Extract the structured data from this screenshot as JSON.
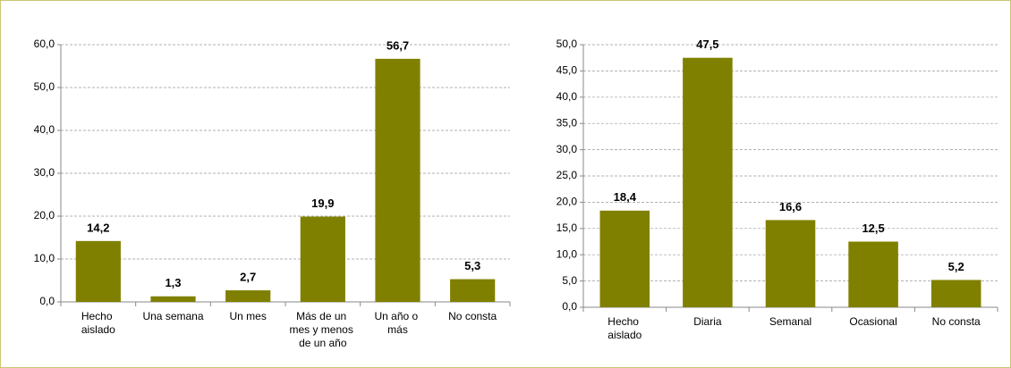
{
  "chart_data": [
    {
      "type": "bar",
      "categories": [
        "Hecho aislado",
        "Una semana",
        "Un mes",
        "Más de un mes y menos de un año",
        "Un año o más",
        "No consta"
      ],
      "values": [
        14.2,
        1.3,
        2.7,
        19.9,
        56.7,
        5.3
      ],
      "value_labels": [
        "14,2",
        "1,3",
        "2,7",
        "19,9",
        "56,7",
        "5,3"
      ],
      "color": "#808000",
      "ylim": [
        0,
        60
      ],
      "yticks": [
        {
          "value": 0,
          "label": "0,0"
        },
        {
          "value": 10,
          "label": "10,0"
        },
        {
          "value": 20,
          "label": "20,0"
        },
        {
          "value": 30,
          "label": "30,0"
        },
        {
          "value": 40,
          "label": "40,0"
        },
        {
          "value": 50,
          "label": "50,0"
        },
        {
          "value": 60,
          "label": "60,0"
        }
      ],
      "grid": true
    },
    {
      "type": "bar",
      "categories": [
        "Hecho aislado",
        "Diaria",
        "Semanal",
        "Ocasional",
        "No consta"
      ],
      "values": [
        18.4,
        47.5,
        16.6,
        12.5,
        5.2
      ],
      "value_labels": [
        "18,4",
        "47,5",
        "16,6",
        "12,5",
        "5,2"
      ],
      "color": "#808000",
      "ylim": [
        0,
        50
      ],
      "yticks": [
        {
          "value": 0,
          "label": "0,0"
        },
        {
          "value": 5,
          "label": "5,0"
        },
        {
          "value": 10,
          "label": "10,0"
        },
        {
          "value": 15,
          "label": "15,0"
        },
        {
          "value": 20,
          "label": "20,0"
        },
        {
          "value": 25,
          "label": "25,0"
        },
        {
          "value": 30,
          "label": "30,0"
        },
        {
          "value": 35,
          "label": "35,0"
        },
        {
          "value": 40,
          "label": "40,0"
        },
        {
          "value": 45,
          "label": "45,0"
        },
        {
          "value": 50,
          "label": "50,0"
        }
      ],
      "grid": true
    }
  ]
}
